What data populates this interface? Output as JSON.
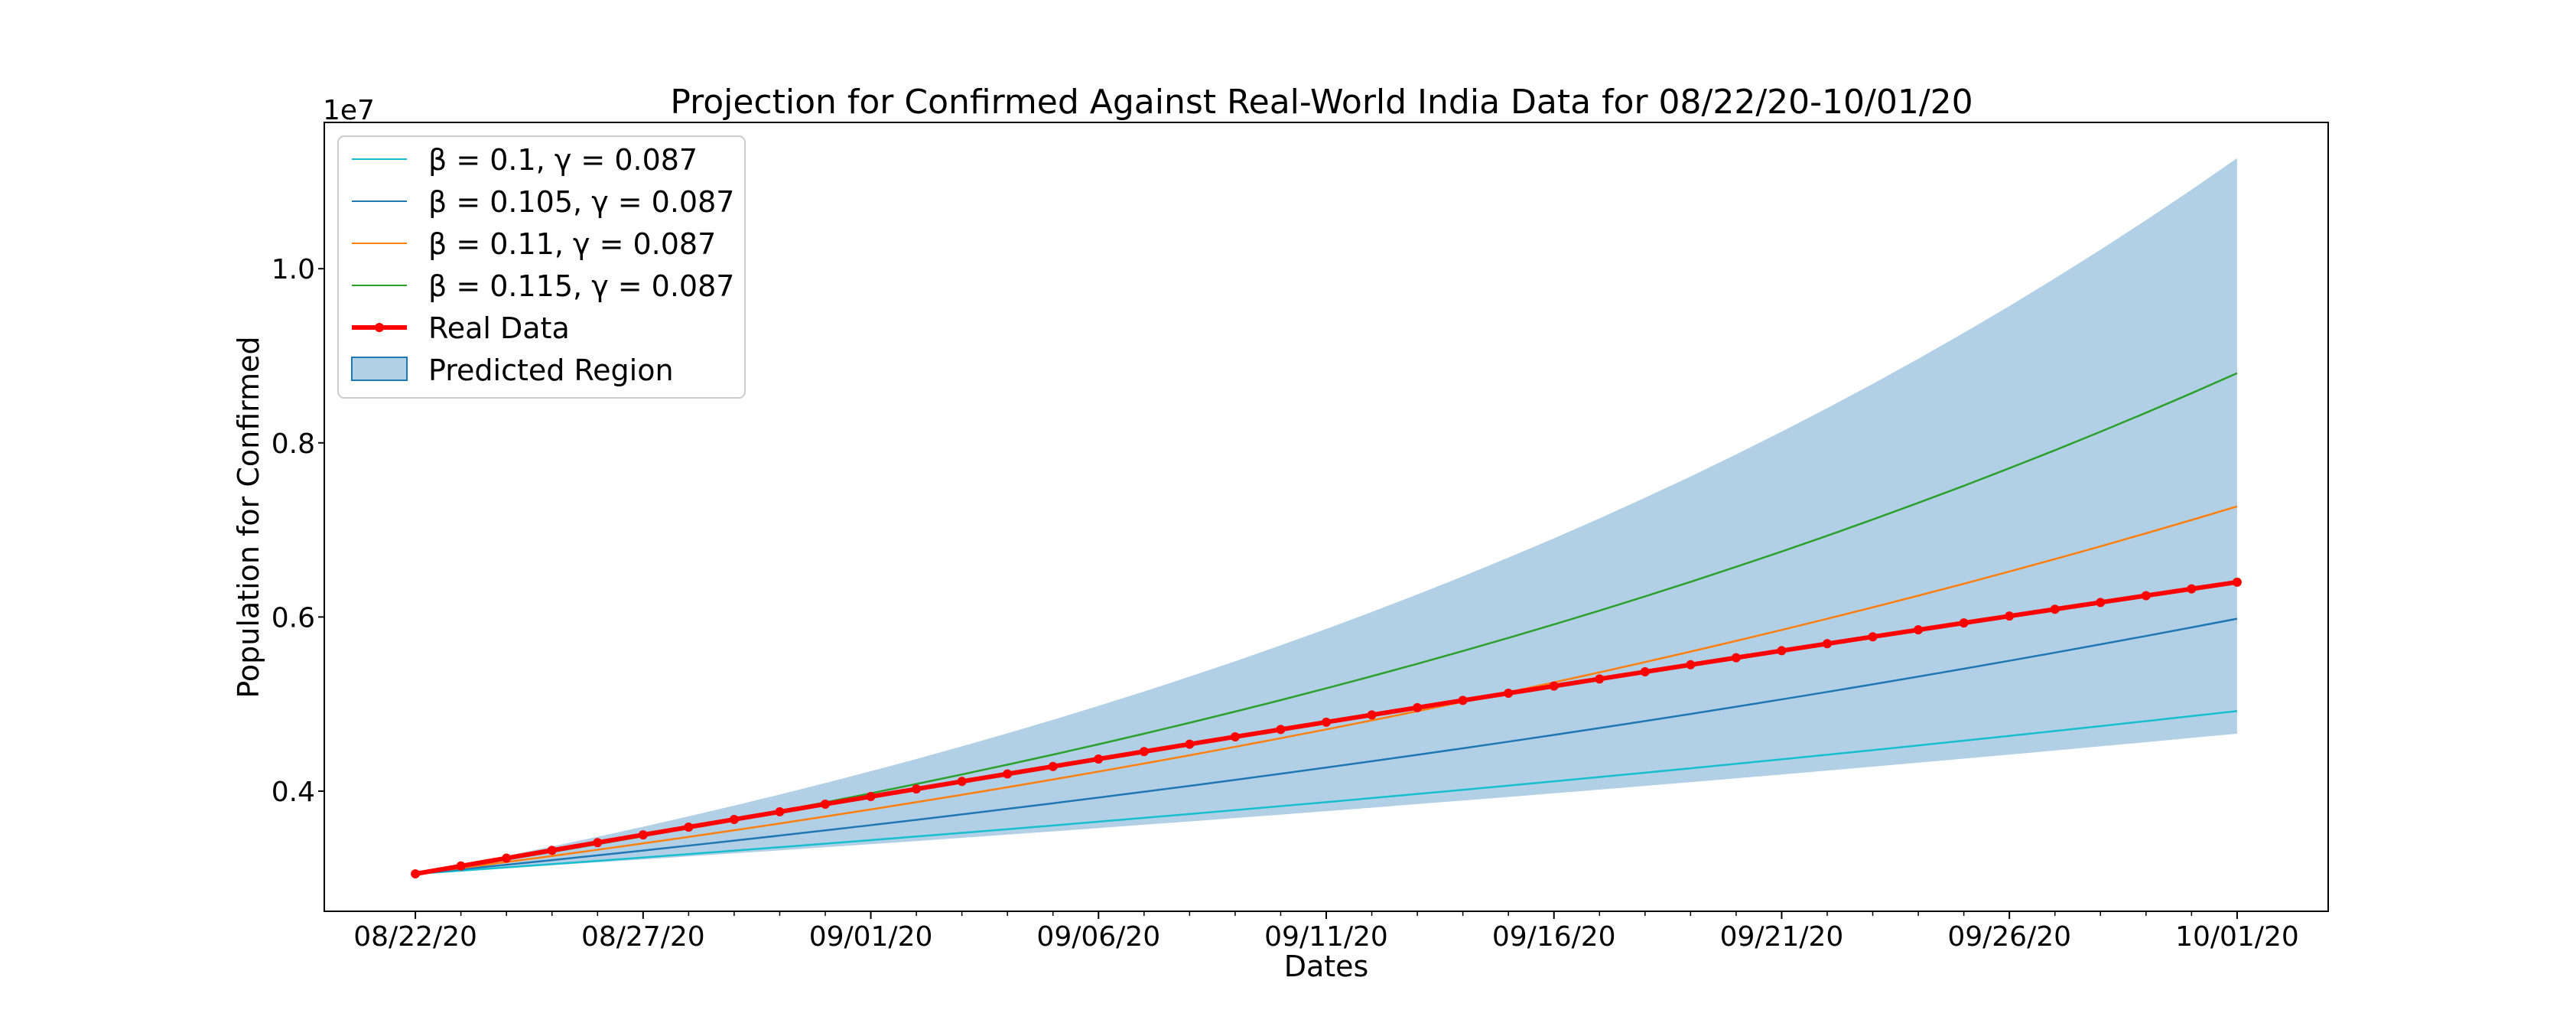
{
  "chart_data": {
    "type": "line",
    "title": "Projection for Confirmed Against Real-World India Data for 08/22/20-10/01/20",
    "xlabel": "Dates",
    "ylabel": "Population for Confirmed",
    "y_offset_label": "1e7",
    "x_tick_labels": [
      "08/22/20",
      "08/27/20",
      "09/01/20",
      "09/06/20",
      "09/11/20",
      "09/16/20",
      "09/21/20",
      "09/26/20",
      "10/01/20"
    ],
    "x_tick_day_index": [
      0,
      5,
      10,
      15,
      20,
      25,
      30,
      35,
      40
    ],
    "y_tick_labels": [
      "0.4",
      "0.6",
      "0.8",
      "1.0"
    ],
    "y_tick_values": [
      4000000,
      6000000,
      8000000,
      10000000
    ],
    "xlim_days": [
      -2,
      42
    ],
    "ylim": [
      2620000,
      11680000
    ],
    "grid": false,
    "legend_position": "upper-left",
    "start_value": 3050000,
    "real_end_value": 6400000,
    "series": [
      {
        "name": "β = 0.1, γ = 0.087",
        "color": "#17becf",
        "end_value": 4920000
      },
      {
        "name": "β = 0.105, γ = 0.087",
        "color": "#1f77b4",
        "end_value": 5980000
      },
      {
        "name": "β = 0.11, γ = 0.087",
        "color": "#ff7f0e",
        "end_value": 7270000
      },
      {
        "name": "β = 0.115, γ = 0.087",
        "color": "#2ca02c",
        "end_value": 8800000
      }
    ],
    "real_data": {
      "name": "Real Data",
      "color": "#ff0000"
    },
    "band": {
      "name": "Predicted Region",
      "color": "#1f77b4",
      "opacity": 0.35,
      "lower_end_value": 4660000,
      "upper_end_value": 11270000
    }
  }
}
